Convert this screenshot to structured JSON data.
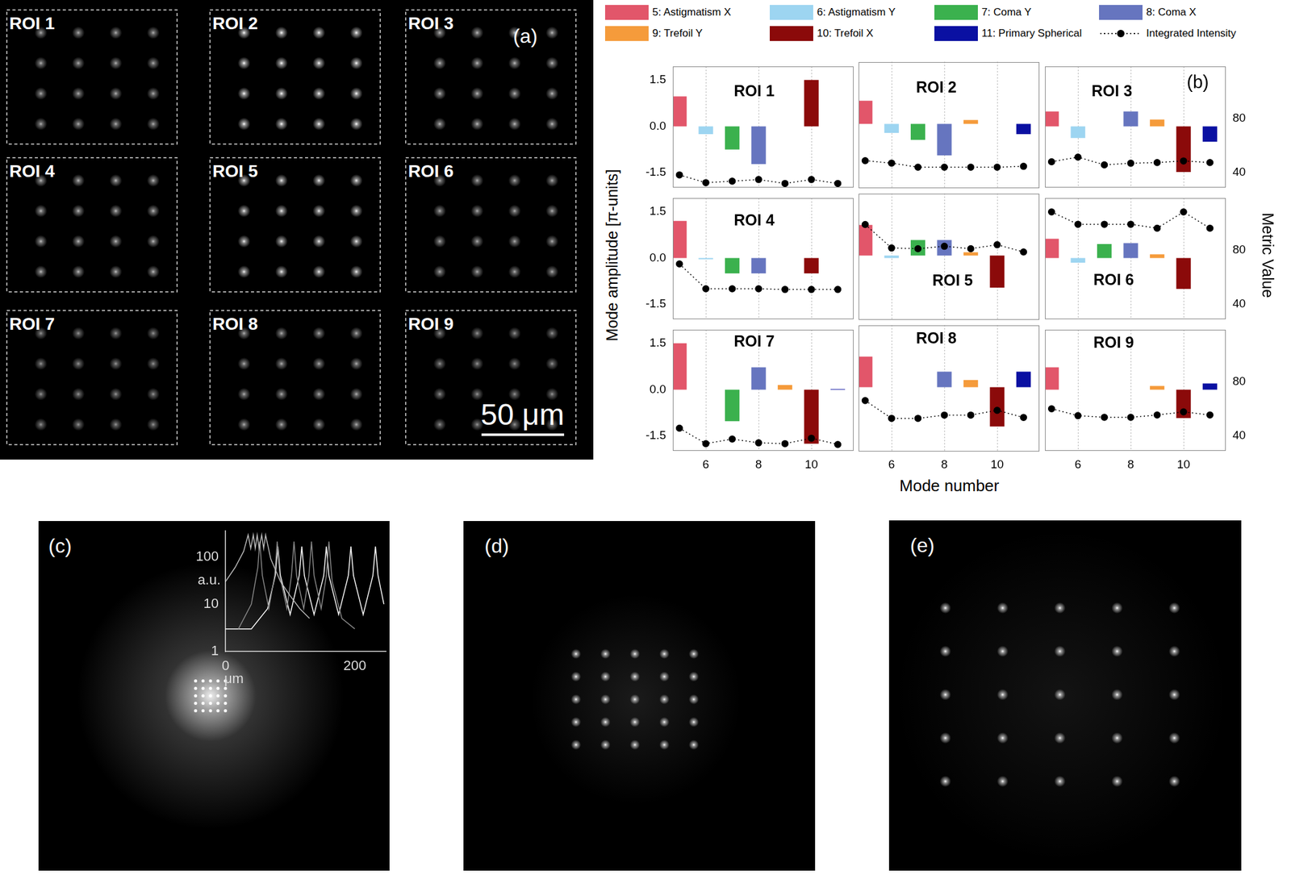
{
  "images": {
    "a": {
      "label": "(a)",
      "rois": [
        "ROI 1",
        "ROI 2",
        "ROI 3",
        "ROI 4",
        "ROI 5",
        "ROI 6",
        "ROI 7",
        "ROI 8",
        "ROI 9"
      ],
      "scale_bar": "50 μm"
    },
    "c": {
      "label": "(c)"
    },
    "d": {
      "label": "(d)"
    },
    "e": {
      "label": "(e)"
    }
  },
  "chart_data": [
    {
      "type": "bar",
      "panel_label": "(b)",
      "x_label": "Mode number",
      "y_label": "Mode amplitude [π-units]",
      "y2_label": "Metric Value",
      "xlim": [
        4.75,
        11.6
      ],
      "xticks": [
        6,
        8,
        10
      ],
      "ylim": [
        -1.98,
        1.93
      ],
      "yticks": [
        -1.5,
        {
          "value": 0,
          "label": "0.0"
        },
        1.5
      ],
      "y2lim": [
        29,
        118
      ],
      "y2ticks": [
        40,
        80
      ],
      "grid": true,
      "legend": "top",
      "series": [
        {
          "name": "5: Astigmatism X",
          "type": "bar",
          "color": "#e2566a"
        },
        {
          "name": "6: Astigmatism Y",
          "type": "bar",
          "color": "#9dd5f1"
        },
        {
          "name": "7: Coma Y",
          "type": "bar",
          "color": "#3bb14e"
        },
        {
          "name": "8: Coma X",
          "type": "bar",
          "color": "#6675bf"
        },
        {
          "name": "9: Trefoil Y",
          "type": "bar",
          "color": "#f59b3b"
        },
        {
          "name": "10: Trefoil X",
          "type": "bar",
          "color": "#8b0a0a"
        },
        {
          "name": "11: Primary Spherical",
          "type": "bar",
          "color": "#0a10a2"
        },
        {
          "name": "Integrated Intensity",
          "type": "line",
          "axis": "y2",
          "color": "#000000",
          "marker": "circle",
          "line_style": "dotted"
        }
      ],
      "x": [
        5,
        6,
        7,
        8,
        9,
        10,
        11
      ],
      "subplots": [
        {
          "title": "ROI 1",
          "values": [
            0.97,
            -0.25,
            -0.75,
            -1.22,
            0,
            1.5,
            0
          ],
          "integrated_intensity": [
            38.3,
            32.6,
            33.7,
            34.9,
            32,
            34.9,
            32
          ]
        },
        {
          "title": "ROI 2",
          "values": [
            0.72,
            -0.28,
            -0.5,
            -0.98,
            0.12,
            0,
            -0.32
          ],
          "integrated_intensity": [
            48,
            46.3,
            43.4,
            43.4,
            43.4,
            43.4,
            44
          ]
        },
        {
          "title": "ROI 3",
          "values": [
            0.48,
            -0.38,
            0,
            0.48,
            0.22,
            -1.48,
            -0.5
          ],
          "integrated_intensity": [
            48,
            51.4,
            45.7,
            46.9,
            47.4,
            48.6,
            47.4
          ]
        },
        {
          "title": "ROI 4",
          "values": [
            1.2,
            -0.04,
            -0.5,
            -0.5,
            0,
            -0.5,
            0
          ],
          "integrated_intensity": [
            69.7,
            51.4,
            51.4,
            51.4,
            50.9,
            50.9,
            50.9
          ]
        },
        {
          "title": "ROI 5",
          "values": [
            0.95,
            -0.08,
            0.48,
            0.48,
            0.1,
            -1.0,
            0
          ],
          "integrated_intensity": [
            96,
            79.4,
            78.9,
            80.6,
            78.9,
            81.7,
            76.6
          ]
        },
        {
          "title": "ROI 6",
          "values": [
            0.62,
            -0.15,
            0.45,
            0.48,
            0.12,
            -1.0,
            0
          ],
          "integrated_intensity": [
            108,
            98.9,
            98.9,
            98.9,
            96,
            108,
            96
          ]
        },
        {
          "title": "ROI 7",
          "values": [
            1.5,
            0,
            -1.02,
            0.72,
            0.15,
            -1.75,
            0.02
          ],
          "integrated_intensity": [
            45.7,
            34.3,
            37.7,
            34.9,
            34.3,
            38.3,
            33.7
          ]
        },
        {
          "title": "ROI 8",
          "values": [
            0.95,
            0,
            0,
            0.48,
            0.22,
            -1.22,
            0.48
          ],
          "integrated_intensity": [
            64.6,
            52,
            52,
            54.3,
            54.3,
            57.7,
            52.6
          ]
        },
        {
          "title": "ROI 9",
          "values": [
            0.72,
            0,
            0,
            0,
            0.12,
            -0.92,
            0.2
          ],
          "integrated_intensity": [
            60,
            54.9,
            53.7,
            53.7,
            55.4,
            57.7,
            55.4
          ]
        }
      ]
    },
    {
      "type": "line",
      "log": "y",
      "x_label": "μm",
      "y_label": "a.u.",
      "xlim": [
        0,
        248
      ],
      "xticks": [
        0,
        200
      ],
      "ylim": [
        1,
        350
      ],
      "yticks": [
        1,
        10,
        100
      ],
      "series": [
        {
          "color": "#bbbbbb",
          "x": [
            0,
            15,
            28,
            35,
            39,
            43,
            46,
            49,
            52,
            56,
            59,
            62,
            70,
            85,
            100,
            115,
            130
          ],
          "values": [
            30,
            60,
            130,
            290,
            150,
            290,
            150,
            290,
            150,
            290,
            150,
            290,
            90,
            30,
            15,
            8,
            5
          ]
        },
        {
          "color": "#888888",
          "x": [
            20,
            40,
            50,
            53,
            57,
            67,
            76,
            80,
            84,
            95,
            102,
            106,
            110,
            121,
            129,
            133,
            137,
            148,
            156,
            160,
            165,
            180,
            200
          ],
          "values": [
            3,
            10,
            60,
            210,
            40,
            8,
            40,
            210,
            40,
            8,
            40,
            210,
            40,
            8,
            40,
            210,
            40,
            8,
            40,
            210,
            30,
            5,
            3
          ]
        },
        {
          "color": "#ffffff",
          "x": [
            0,
            40,
            65,
            77,
            81,
            85,
            100,
            114,
            118,
            122,
            137,
            152,
            156,
            160,
            175,
            190,
            194,
            198,
            213,
            228,
            232,
            236,
            245
          ],
          "values": [
            3,
            3,
            8,
            40,
            165,
            40,
            6,
            40,
            165,
            40,
            6,
            40,
            165,
            40,
            6,
            40,
            165,
            40,
            6,
            40,
            165,
            40,
            10
          ]
        }
      ]
    }
  ]
}
